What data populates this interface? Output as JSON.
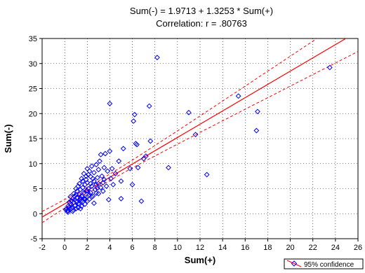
{
  "chart_data": {
    "type": "scatter",
    "title": "Sum(-) = 1.9713 + 1.3253 * Sum(+)",
    "subtitle": "Correlation: r = .80763",
    "xlabel": "Sum(+)",
    "ylabel": "Sum(-)",
    "xlim": [
      -2,
      26
    ],
    "ylim": [
      -5,
      35
    ],
    "xticks": [
      -2,
      0,
      2,
      4,
      6,
      8,
      10,
      12,
      14,
      16,
      18,
      20,
      22,
      24,
      26
    ],
    "yticks": [
      -5,
      0,
      5,
      10,
      15,
      20,
      25,
      30,
      35
    ],
    "grid": true,
    "legend": {
      "position": "bottom-right",
      "label": "95% confidence"
    },
    "regression": {
      "intercept": 1.9713,
      "slope": 1.3253,
      "color": "#ff0000",
      "confidence_band": true
    },
    "marker": {
      "shape": "diamond-open",
      "color": "#0000ff"
    },
    "points": [
      [
        0.1,
        0.8
      ],
      [
        0.2,
        1.0
      ],
      [
        0.3,
        0.6
      ],
      [
        0.3,
        1.5
      ],
      [
        0.4,
        1.2
      ],
      [
        0.5,
        2.0
      ],
      [
        0.5,
        0.9
      ],
      [
        0.6,
        1.8
      ],
      [
        0.6,
        2.6
      ],
      [
        0.7,
        1.3
      ],
      [
        0.7,
        3.0
      ],
      [
        0.8,
        2.2
      ],
      [
        0.8,
        4.0
      ],
      [
        0.9,
        1.6
      ],
      [
        0.9,
        3.5
      ],
      [
        1.0,
        2.5
      ],
      [
        1.0,
        5.0
      ],
      [
        1.0,
        1.0
      ],
      [
        1.1,
        3.2
      ],
      [
        1.1,
        4.5
      ],
      [
        1.2,
        2.0
      ],
      [
        1.2,
        5.5
      ],
      [
        1.3,
        3.8
      ],
      [
        1.3,
        6.0
      ],
      [
        1.4,
        2.8
      ],
      [
        1.4,
        4.8
      ],
      [
        1.5,
        3.5
      ],
      [
        1.5,
        7.0
      ],
      [
        1.5,
        1.5
      ],
      [
        1.6,
        5.2
      ],
      [
        1.6,
        6.5
      ],
      [
        1.7,
        4.2
      ],
      [
        1.7,
        8.0
      ],
      [
        1.8,
        3.0
      ],
      [
        1.8,
        5.8
      ],
      [
        1.9,
        7.5
      ],
      [
        1.9,
        4.5
      ],
      [
        2.0,
        2.5
      ],
      [
        2.0,
        6.2
      ],
      [
        2.0,
        9.0
      ],
      [
        2.1,
        5.0
      ],
      [
        2.1,
        7.8
      ],
      [
        2.2,
        3.8
      ],
      [
        2.2,
        8.5
      ],
      [
        2.3,
        6.0
      ],
      [
        2.3,
        4.2
      ],
      [
        2.4,
        9.5
      ],
      [
        2.4,
        5.5
      ],
      [
        2.5,
        7.0
      ],
      [
        2.5,
        3.5
      ],
      [
        2.6,
        8.2
      ],
      [
        2.6,
        6.5
      ],
      [
        2.7,
        4.8
      ],
      [
        2.8,
        9.8
      ],
      [
        2.8,
        5.8
      ],
      [
        2.9,
        7.2
      ],
      [
        3.0,
        4.0
      ],
      [
        3.0,
        8.8
      ],
      [
        3.0,
        6.0
      ],
      [
        3.1,
        10.5
      ],
      [
        3.2,
        5.2
      ],
      [
        3.2,
        11.8
      ],
      [
        3.3,
        7.5
      ],
      [
        3.4,
        4.5
      ],
      [
        3.5,
        9.2
      ],
      [
        3.5,
        6.8
      ],
      [
        3.6,
        12.0
      ],
      [
        3.7,
        5.5
      ],
      [
        3.8,
        8.5
      ],
      [
        3.9,
        2.8
      ],
      [
        4.0,
        12.5
      ],
      [
        4.0,
        22.0
      ],
      [
        4.1,
        7.0
      ],
      [
        4.2,
        9.0
      ],
      [
        4.3,
        5.8
      ],
      [
        4.5,
        8.0
      ],
      [
        4.8,
        10.5
      ],
      [
        5.0,
        6.5
      ],
      [
        5.2,
        13.0
      ],
      [
        5.0,
        3.0
      ],
      [
        5.8,
        9.0
      ],
      [
        6.0,
        5.8
      ],
      [
        6.1,
        18.5
      ],
      [
        6.2,
        19.8
      ],
      [
        6.3,
        14.0
      ],
      [
        6.4,
        13.8
      ],
      [
        6.5,
        9.2
      ],
      [
        6.8,
        2.5
      ],
      [
        7.0,
        11.0
      ],
      [
        7.2,
        11.5
      ],
      [
        7.5,
        21.5
      ],
      [
        7.6,
        14.5
      ],
      [
        8.2,
        31.2
      ],
      [
        9.2,
        9.2
      ],
      [
        11.0,
        20.2
      ],
      [
        11.6,
        15.8
      ],
      [
        12.6,
        7.8
      ],
      [
        15.4,
        23.5
      ],
      [
        17.0,
        16.6
      ],
      [
        17.1,
        20.4
      ],
      [
        23.5,
        29.2
      ],
      [
        0.2,
        0.5
      ],
      [
        0.4,
        2.3
      ],
      [
        0.6,
        1.1
      ],
      [
        0.8,
        0.7
      ],
      [
        1.0,
        3.8
      ],
      [
        1.2,
        1.2
      ],
      [
        1.4,
        3.1
      ],
      [
        1.6,
        2.4
      ],
      [
        1.8,
        1.9
      ],
      [
        2.0,
        4.6
      ],
      [
        2.2,
        2.9
      ],
      [
        2.4,
        3.3
      ],
      [
        2.6,
        2.1
      ],
      [
        2.8,
        4.1
      ],
      [
        1.1,
        2.4
      ],
      [
        1.3,
        1.9
      ],
      [
        0.9,
        2.8
      ],
      [
        1.7,
        3.0
      ],
      [
        2.1,
        3.6
      ],
      [
        1.5,
        2.6
      ],
      [
        0.5,
        3.4
      ],
      [
        0.7,
        0.5
      ],
      [
        3.4,
        6.2
      ],
      [
        2.9,
        5.1
      ],
      [
        1.9,
        6.8
      ],
      [
        2.3,
        7.4
      ],
      [
        1.4,
        1.0
      ],
      [
        0.3,
        0.3
      ],
      [
        1.8,
        2.8
      ]
    ]
  }
}
